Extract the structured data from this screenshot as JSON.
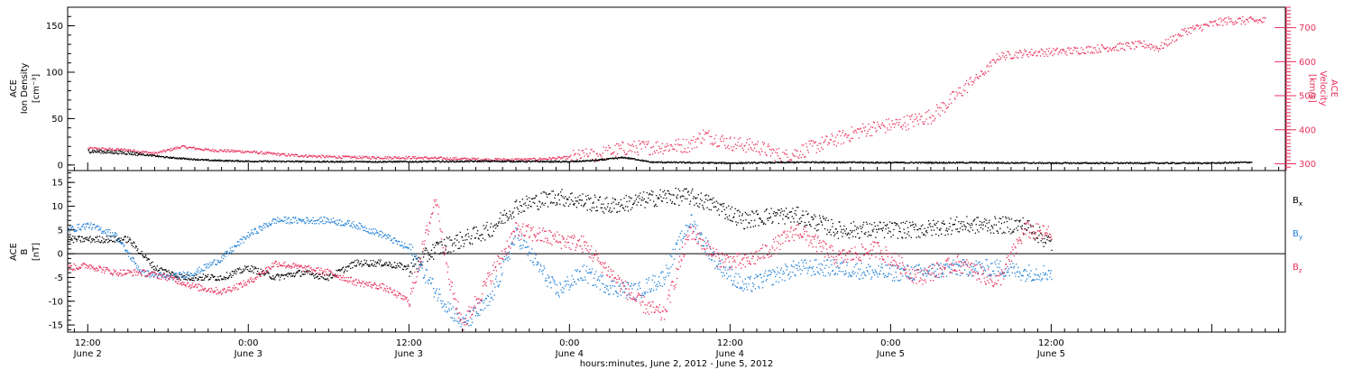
{
  "chart_data": [
    {
      "type": "scatter",
      "panel": "top",
      "ylabel": [
        "ACE",
        "Ion Density",
        "[cm⁻³]"
      ],
      "ylim": [
        -6,
        170
      ],
      "yticks": [
        0,
        50,
        100,
        150
      ],
      "y2label": [
        "ACE",
        "Velocity",
        "[km/s]"
      ],
      "y2lim": [
        280,
        760
      ],
      "y2ticks": [
        300,
        400,
        500,
        600,
        700
      ],
      "y2_color": "#e8305c",
      "x_hours_range": [
        -1.5,
        89.5
      ],
      "series": [
        {
          "name": "Ion Density",
          "axis": "left",
          "color": "#000000",
          "points": [
            [
              0,
              15
            ],
            [
              3,
              13
            ],
            [
              6,
              8
            ],
            [
              9,
              5
            ],
            [
              12,
              4
            ],
            [
              18,
              3.5
            ],
            [
              24,
              3.5
            ],
            [
              30,
              4
            ],
            [
              36,
              3.5
            ],
            [
              38,
              5
            ],
            [
              40,
              8
            ],
            [
              41,
              6
            ],
            [
              42,
              3
            ],
            [
              48,
              2
            ],
            [
              54,
              3
            ],
            [
              60,
              2.5
            ],
            [
              66,
              2.5
            ],
            [
              72,
              2
            ],
            [
              78,
              2
            ],
            [
              84,
              2
            ],
            [
              87,
              3
            ]
          ]
        },
        {
          "name": "Velocity",
          "axis": "right",
          "color": "#e8305c",
          "points": [
            [
              0,
              345
            ],
            [
              3,
              340
            ],
            [
              5,
              330
            ],
            [
              7,
              350
            ],
            [
              9,
              340
            ],
            [
              12,
              335
            ],
            [
              15,
              325
            ],
            [
              18,
              320
            ],
            [
              21,
              318
            ],
            [
              24,
              318
            ],
            [
              27,
              315
            ],
            [
              30,
              312
            ],
            [
              33,
              312
            ],
            [
              36,
              318
            ],
            [
              38,
              325
            ],
            [
              40,
              345
            ],
            [
              43,
              350
            ],
            [
              45,
              355
            ],
            [
              46,
              385
            ],
            [
              48,
              360
            ],
            [
              50,
              350
            ],
            [
              52,
              320
            ],
            [
              55,
              360
            ],
            [
              58,
              400
            ],
            [
              61,
              420
            ],
            [
              63,
              440
            ],
            [
              64,
              470
            ],
            [
              66,
              540
            ],
            [
              67,
              570
            ],
            [
              68,
              615
            ],
            [
              70,
              625
            ],
            [
              73,
              630
            ],
            [
              76,
              640
            ],
            [
              79,
              650
            ],
            [
              80,
              640
            ],
            [
              81,
              665
            ],
            [
              82,
              690
            ],
            [
              85,
              720
            ],
            [
              88,
              720
            ]
          ]
        }
      ]
    },
    {
      "type": "scatter",
      "panel": "bottom",
      "ylabel": [
        "ACE",
        "B",
        "[nT]"
      ],
      "ylim": [
        -16.5,
        17.5
      ],
      "yticks": [
        -15,
        -10,
        -5,
        0,
        5,
        10,
        15
      ],
      "xlabel": "hours:minutes, June  2, 2012 - June  5, 2012",
      "x_hours_range": [
        -1.5,
        89.5
      ],
      "xticks": [
        {
          "hour": 0,
          "time": "12:00",
          "date": "June 2"
        },
        {
          "hour": 12,
          "time": "0:00",
          "date": "June 3"
        },
        {
          "hour": 24,
          "time": "12:00",
          "date": "June 3"
        },
        {
          "hour": 36,
          "time": "0:00",
          "date": "June 4"
        },
        {
          "hour": 48,
          "time": "12:00",
          "date": "June 4"
        },
        {
          "hour": 60,
          "time": "0:00",
          "date": "June 5"
        },
        {
          "hour": 72,
          "time": "12:00",
          "date": "June 5"
        }
      ],
      "series": [
        {
          "name": "Bx",
          "legend_main": "B",
          "legend_sub": "x",
          "color": "#000000",
          "points": [
            [
              -1.5,
              3
            ],
            [
              0,
              3
            ],
            [
              1,
              3
            ],
            [
              3,
              3
            ],
            [
              5,
              -3
            ],
            [
              7,
              -5
            ],
            [
              10,
              -5
            ],
            [
              12,
              -3
            ],
            [
              14,
              -5
            ],
            [
              16,
              -4
            ],
            [
              18,
              -5
            ],
            [
              20,
              -2
            ],
            [
              22,
              -2
            ],
            [
              24,
              -3
            ],
            [
              26,
              1
            ],
            [
              28,
              3
            ],
            [
              30,
              5
            ],
            [
              32,
              10
            ],
            [
              35,
              12
            ],
            [
              37,
              11
            ],
            [
              39,
              10
            ],
            [
              41,
              11
            ],
            [
              43,
              12
            ],
            [
              45,
              12
            ],
            [
              47,
              10
            ],
            [
              49,
              7
            ],
            [
              51,
              8
            ],
            [
              53,
              8
            ],
            [
              56,
              5
            ],
            [
              59,
              5
            ],
            [
              62,
              5
            ],
            [
              65,
              6
            ],
            [
              68,
              6
            ],
            [
              70,
              6
            ],
            [
              72,
              2
            ]
          ]
        },
        {
          "name": "By",
          "legend_main": "B",
          "legend_sub": "y",
          "color": "#1e7fd6",
          "points": [
            [
              -1.5,
              5
            ],
            [
              0,
              6
            ],
            [
              2,
              4
            ],
            [
              4,
              -4
            ],
            [
              6,
              -5
            ],
            [
              8,
              -4
            ],
            [
              10,
              -1
            ],
            [
              12,
              4
            ],
            [
              14,
              7
            ],
            [
              16,
              7
            ],
            [
              18,
              7
            ],
            [
              20,
              6
            ],
            [
              22,
              4
            ],
            [
              24,
              1
            ],
            [
              26,
              -8
            ],
            [
              28,
              -15
            ],
            [
              30,
              -10
            ],
            [
              32,
              4
            ],
            [
              35,
              -8
            ],
            [
              37,
              -4
            ],
            [
              39,
              -7
            ],
            [
              41,
              -8
            ],
            [
              43,
              -5
            ],
            [
              45,
              7
            ],
            [
              47,
              -2
            ],
            [
              49,
              -7
            ],
            [
              51,
              -5
            ],
            [
              53,
              -3
            ],
            [
              56,
              -3
            ],
            [
              59,
              -4
            ],
            [
              62,
              -4
            ],
            [
              65,
              -3
            ],
            [
              68,
              -3
            ],
            [
              70,
              -4
            ],
            [
              72,
              -4
            ]
          ]
        },
        {
          "name": "Bz",
          "legend_main": "B",
          "legend_sub": "z",
          "color": "#e8305c",
          "points": [
            [
              -1.5,
              -3
            ],
            [
              0,
              -2.5
            ],
            [
              2,
              -4
            ],
            [
              4,
              -4
            ],
            [
              6,
              -5
            ],
            [
              8,
              -7
            ],
            [
              10,
              -8
            ],
            [
              12,
              -6
            ],
            [
              14,
              -2
            ],
            [
              16,
              -3
            ],
            [
              18,
              -4
            ],
            [
              20,
              -6
            ],
            [
              22,
              -7
            ],
            [
              24,
              -10
            ],
            [
              26,
              12
            ],
            [
              27,
              -6
            ],
            [
              28,
              -15
            ],
            [
              30,
              -5
            ],
            [
              32,
              5
            ],
            [
              35,
              3
            ],
            [
              37,
              2
            ],
            [
              39,
              -4
            ],
            [
              41,
              -10
            ],
            [
              43,
              -13
            ],
            [
              45,
              5
            ],
            [
              47,
              -1
            ],
            [
              49,
              -2
            ],
            [
              51,
              1
            ],
            [
              53,
              5
            ],
            [
              56,
              -1
            ],
            [
              59,
              1
            ],
            [
              62,
              -5
            ],
            [
              65,
              -2
            ],
            [
              68,
              -6
            ],
            [
              70,
              5
            ],
            [
              72,
              4
            ]
          ]
        }
      ]
    }
  ]
}
